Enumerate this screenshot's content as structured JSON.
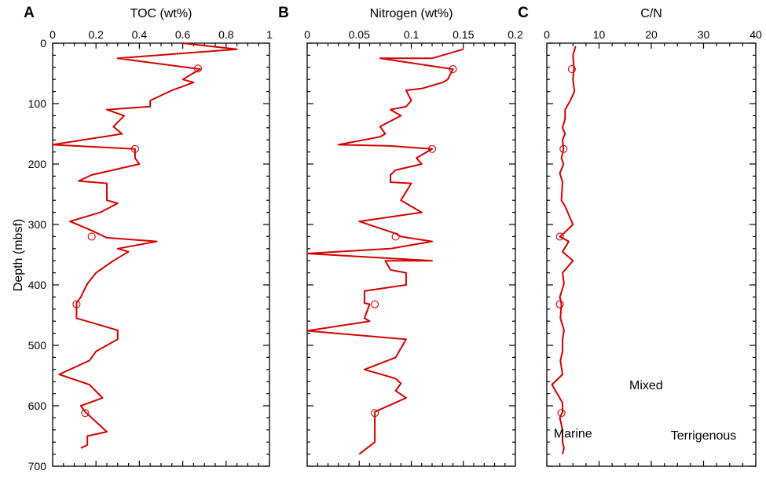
{
  "chart_data": [
    {
      "type": "line",
      "panel_label": "A",
      "title": "TOC (wt%)",
      "ylabel": "Depth (mbsf)",
      "xlim": [
        0,
        1
      ],
      "ylim": [
        700,
        0
      ],
      "x_ticks": [
        0,
        0.2,
        0.4,
        0.6,
        0.8,
        1
      ],
      "x_tick_labels": [
        "0",
        "0.2",
        "0.4",
        "0.6",
        "0.8",
        "1"
      ],
      "y_ticks": [
        0,
        100,
        200,
        300,
        400,
        500,
        600,
        700
      ],
      "y_tick_labels": [
        "0",
        "100",
        "200",
        "300",
        "400",
        "500",
        "600",
        "700"
      ],
      "series": [
        {
          "color": "#d40000",
          "points": [
            [
              0.6,
              0
            ],
            [
              0.85,
              10
            ],
            [
              0.3,
              25
            ],
            [
              0.68,
              43
            ],
            [
              0.6,
              60
            ],
            [
              0.65,
              65
            ],
            [
              0.55,
              78
            ],
            [
              0.45,
              95
            ],
            [
              0.45,
              105
            ],
            [
              0.25,
              110
            ],
            [
              0.33,
              120
            ],
            [
              0.28,
              138
            ],
            [
              0.32,
              150
            ],
            [
              0.0,
              168
            ],
            [
              0.38,
              175
            ],
            [
              0.38,
              190
            ],
            [
              0.4,
              200
            ],
            [
              0.18,
              218
            ],
            [
              0.12,
              228
            ],
            [
              0.25,
              232
            ],
            [
              0.25,
              260
            ],
            [
              0.3,
              265
            ],
            [
              0.22,
              280
            ],
            [
              0.08,
              295
            ],
            [
              0.18,
              310
            ],
            [
              0.25,
              322
            ],
            [
              0.48,
              328
            ],
            [
              0.3,
              340
            ],
            [
              0.35,
              345
            ],
            [
              0.28,
              360
            ],
            [
              0.2,
              380
            ],
            [
              0.16,
              398
            ],
            [
              0.13,
              420
            ],
            [
              0.11,
              430
            ],
            [
              0.11,
              455
            ],
            [
              0.3,
              475
            ],
            [
              0.3,
              490
            ],
            [
              0.2,
              510
            ],
            [
              0.17,
              525
            ],
            [
              0.03,
              548
            ],
            [
              0.17,
              565
            ],
            [
              0.23,
              587
            ],
            [
              0.13,
              600
            ],
            [
              0.15,
              610
            ],
            [
              0.25,
              643
            ],
            [
              0.16,
              650
            ],
            [
              0.16,
              665
            ],
            [
              0.13,
              670
            ]
          ]
        }
      ],
      "markers": [
        [
          0.67,
          42
        ],
        [
          0.38,
          175
        ],
        [
          0.18,
          320
        ],
        [
          0.11,
          432
        ],
        [
          0.15,
          612
        ]
      ]
    },
    {
      "type": "line",
      "panel_label": "B",
      "title": "Nitrogen (wt%)",
      "xlim": [
        0,
        0.2
      ],
      "ylim": [
        700,
        0
      ],
      "x_ticks": [
        0,
        0.05,
        0.1,
        0.15,
        0.2
      ],
      "x_tick_labels": [
        "0",
        "0.05",
        "0.1",
        "0.15",
        "0.2"
      ],
      "series": [
        {
          "color": "#d40000",
          "points": [
            [
              0.15,
              10
            ],
            [
              0.12,
              25
            ],
            [
              0.07,
              25
            ],
            [
              0.14,
              43
            ],
            [
              0.135,
              60
            ],
            [
              0.13,
              65
            ],
            [
              0.11,
              75
            ],
            [
              0.095,
              78
            ],
            [
              0.1,
              95
            ],
            [
              0.095,
              105
            ],
            [
              0.08,
              110
            ],
            [
              0.09,
              120
            ],
            [
              0.07,
              138
            ],
            [
              0.075,
              150
            ],
            [
              0.07,
              155
            ],
            [
              0.03,
              168
            ],
            [
              0.08,
              170
            ],
            [
              0.12,
              175
            ],
            [
              0.105,
              190
            ],
            [
              0.11,
              200
            ],
            [
              0.085,
              210
            ],
            [
              0.08,
              218
            ],
            [
              0.08,
              230
            ],
            [
              0.1,
              232
            ],
            [
              0.09,
              260
            ],
            [
              0.11,
              280
            ],
            [
              0.05,
              295
            ],
            [
              0.085,
              315
            ],
            [
              0.09,
              320
            ],
            [
              0.12,
              328
            ],
            [
              0.08,
              340
            ],
            [
              0.0,
              348
            ],
            [
              0.12,
              360
            ],
            [
              0.075,
              360
            ],
            [
              0.08,
              375
            ],
            [
              0.095,
              380
            ],
            [
              0.095,
              400
            ],
            [
              0.055,
              410
            ],
            [
              0.055,
              430
            ],
            [
              0.06,
              432
            ],
            [
              0.055,
              455
            ],
            [
              0.06,
              460
            ],
            [
              0.0,
              476
            ],
            [
              0.095,
              490
            ],
            [
              0.085,
              520
            ],
            [
              0.055,
              540
            ],
            [
              0.085,
              555
            ],
            [
              0.09,
              563
            ],
            [
              0.085,
              575
            ],
            [
              0.095,
              587
            ],
            [
              0.065,
              610
            ],
            [
              0.065,
              660
            ],
            [
              0.05,
              680
            ]
          ]
        }
      ],
      "markers": [
        [
          0.14,
          43
        ],
        [
          0.12,
          175
        ],
        [
          0.085,
          320
        ],
        [
          0.065,
          432
        ],
        [
          0.065,
          612
        ]
      ]
    },
    {
      "type": "line",
      "panel_label": "C",
      "title": "C/N",
      "xlim": [
        0,
        40
      ],
      "ylim": [
        700,
        0
      ],
      "x_ticks": [
        0,
        10,
        20,
        30,
        40
      ],
      "x_tick_labels": [
        "0",
        "10",
        "20",
        "30",
        "40"
      ],
      "series": [
        {
          "color": "#d40000",
          "points": [
            [
              5.5,
              5
            ],
            [
              5,
              20
            ],
            [
              5.2,
              40
            ],
            [
              5,
              60
            ],
            [
              5.3,
              80
            ],
            [
              4.5,
              95
            ],
            [
              3.5,
              110
            ],
            [
              3.5,
              125
            ],
            [
              3,
              140
            ],
            [
              3.5,
              150
            ],
            [
              3,
              160
            ],
            [
              3.2,
              175
            ],
            [
              2.8,
              190
            ],
            [
              3.2,
              200
            ],
            [
              2.5,
              215
            ],
            [
              3,
              230
            ],
            [
              2.8,
              260
            ],
            [
              3.5,
              270
            ],
            [
              5,
              300
            ],
            [
              3.2,
              315
            ],
            [
              2.5,
              320
            ],
            [
              4.2,
              328
            ],
            [
              3,
              345
            ],
            [
              5,
              360
            ],
            [
              3,
              380
            ],
            [
              3.3,
              398
            ],
            [
              2.5,
              420
            ],
            [
              2.8,
              432
            ],
            [
              2.6,
              455
            ],
            [
              3.3,
              475
            ],
            [
              3,
              490
            ],
            [
              3,
              510
            ],
            [
              2.6,
              525
            ],
            [
              3,
              548
            ],
            [
              1,
              565
            ],
            [
              2,
              580
            ],
            [
              3,
              595
            ],
            [
              3,
              610
            ],
            [
              2.5,
              620
            ],
            [
              3,
              640
            ],
            [
              3,
              660
            ],
            [
              3.3,
              670
            ],
            [
              3,
              680
            ]
          ]
        }
      ],
      "markers": [
        [
          4.8,
          43
        ],
        [
          3.2,
          175
        ],
        [
          2.5,
          320
        ],
        [
          2.5,
          432
        ],
        [
          2.8,
          612
        ]
      ],
      "annotations": [
        {
          "text": "Mixed",
          "x": 19,
          "y": 565
        },
        {
          "text": "Marine",
          "x": 5,
          "y": 645
        },
        {
          "text": "Terrigenous",
          "x": 30,
          "y": 648
        }
      ]
    }
  ]
}
